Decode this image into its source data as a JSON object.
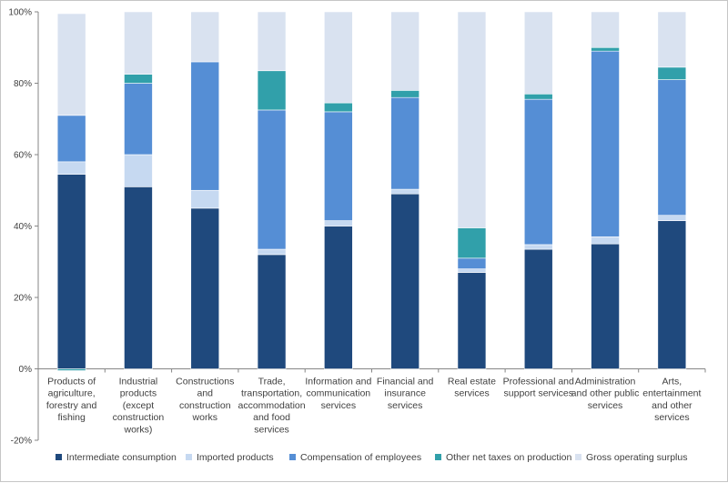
{
  "chart_data": {
    "type": "bar",
    "stacked": true,
    "title": "",
    "xlabel": "",
    "ylabel": "",
    "ylim": [
      -20,
      100
    ],
    "ytick_step": 20,
    "ytick_labels": [
      "-20%",
      "0%",
      "20%",
      "40%",
      "60%",
      "80%",
      "100%"
    ],
    "categories": [
      [
        "Products of",
        "agriculture,",
        "forestry and",
        "fishing"
      ],
      [
        "Industrial",
        "products",
        "(except",
        "construction",
        "works)"
      ],
      [
        "Constructions",
        "and",
        "construction",
        "works"
      ],
      [
        "Trade,",
        "transportation,",
        "accommodation",
        "and food",
        "services"
      ],
      [
        "Information and",
        "communication",
        "services"
      ],
      [
        "Financial and",
        "insurance",
        "services"
      ],
      [
        "Real estate",
        "services"
      ],
      [
        "Professional and",
        "support services"
      ],
      [
        "Administration",
        "and other public",
        "services"
      ],
      [
        "Arts,",
        "entertainment",
        "and other",
        "services"
      ]
    ],
    "series": [
      {
        "name": "Intermediate consumption",
        "color": "#1f497d",
        "values": [
          54.5,
          51,
          45,
          32,
          40,
          49,
          27,
          33.5,
          35,
          41.5
        ]
      },
      {
        "name": "Imported products",
        "color": "#c6d9f1",
        "values": [
          3.5,
          9,
          5,
          1.5,
          1.5,
          1.3,
          1,
          1.3,
          2,
          1.5
        ]
      },
      {
        "name": "Compensation of employees",
        "color": "#558ed5",
        "values": [
          13,
          20,
          36,
          39,
          30.5,
          25.7,
          3,
          40.7,
          52,
          38
        ]
      },
      {
        "name": "Other net taxes on production",
        "color": "#31a0aa",
        "values": [
          -0.5,
          2.5,
          0,
          11,
          2.5,
          2,
          8.5,
          1.5,
          1,
          3.5
        ]
      },
      {
        "name": "Gross operating surplus",
        "color": "#d9e2f0",
        "values": [
          28.5,
          17.5,
          14,
          16.5,
          25.5,
          22,
          60.5,
          23,
          10,
          15.5
        ]
      }
    ],
    "legend_position": "bottom",
    "grid": false
  }
}
